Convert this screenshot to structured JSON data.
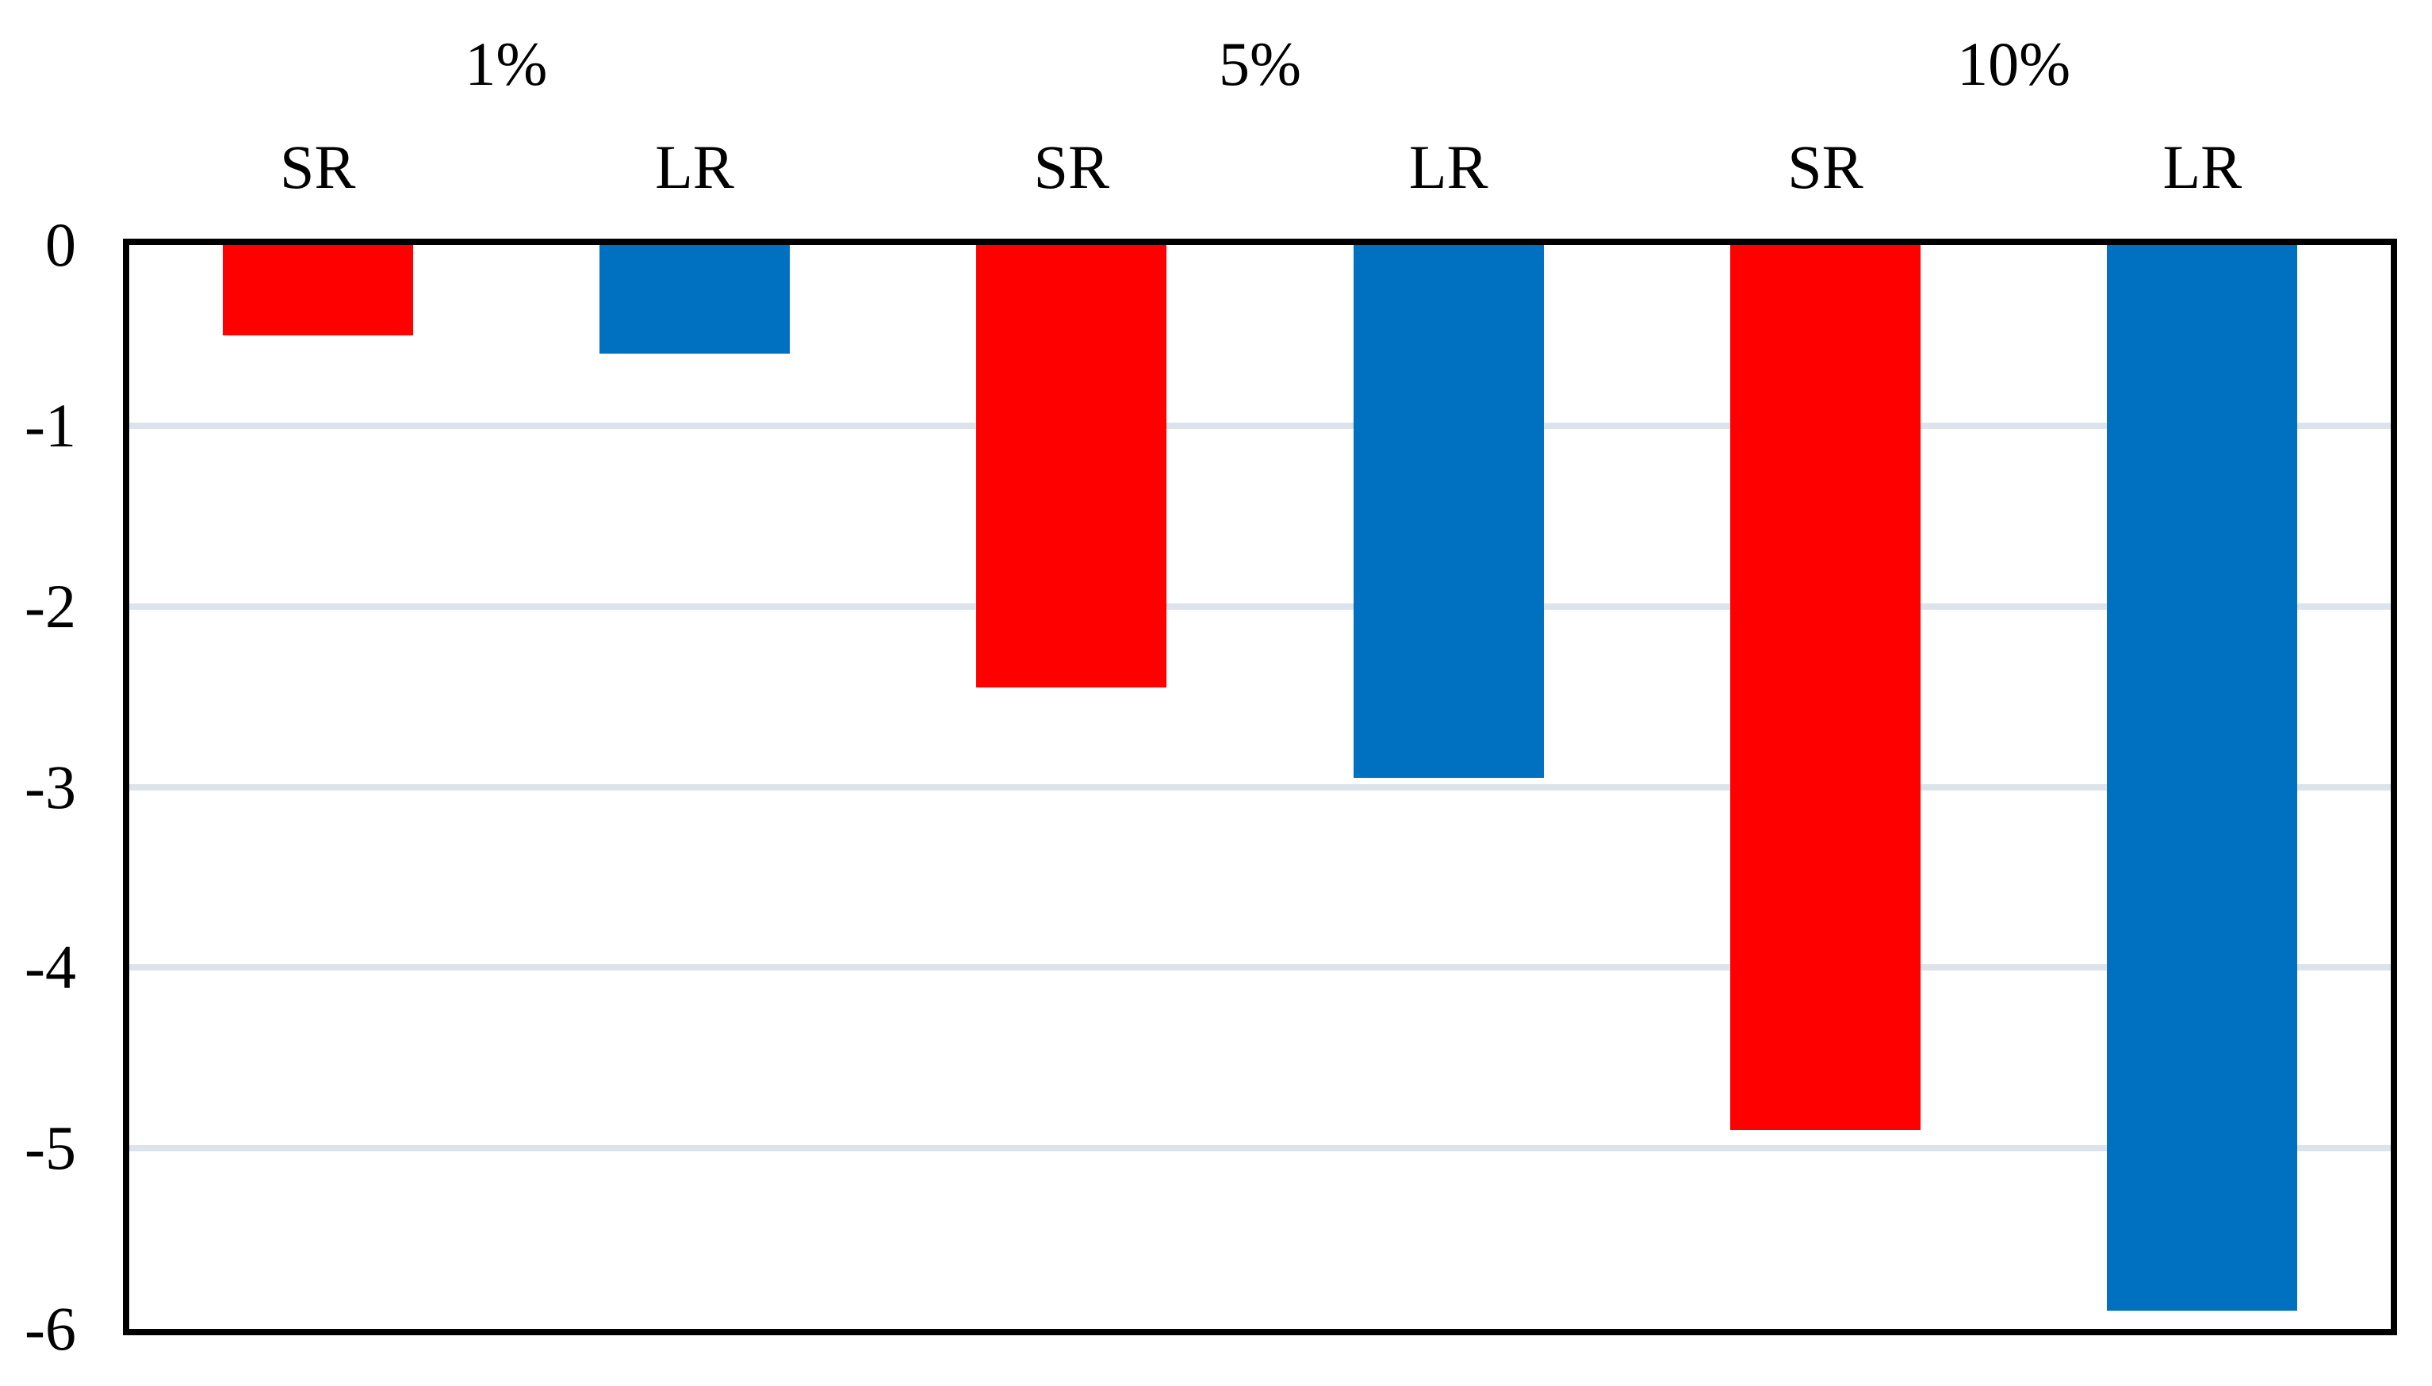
{
  "chart_data": {
    "type": "bar",
    "title": "",
    "xlabel": "",
    "ylabel": "",
    "groups": [
      "1%",
      "5%",
      "10%"
    ],
    "series": [
      {
        "name": "SR",
        "color": "#FF0000",
        "values": [
          -0.5,
          -2.45,
          -4.9
        ]
      },
      {
        "name": "LR",
        "color": "#0070C0",
        "values": [
          -0.6,
          -2.95,
          -5.9
        ]
      }
    ],
    "categories": [
      "1% SR",
      "1% LR",
      "5% SR",
      "5% LR",
      "10% SR",
      "10% LR"
    ],
    "values": [
      -0.5,
      -0.6,
      -2.45,
      -2.95,
      -4.9,
      -5.9
    ],
    "ylim": [
      -6,
      0
    ],
    "yticks": [
      "0",
      "-1",
      "-2",
      "-3",
      "-4",
      "-5",
      "-6"
    ],
    "grid": true,
    "legend_position": "none",
    "colors": {
      "sr_bar": "#FF0000",
      "lr_bar": "#0070C0",
      "gridline": "#DDE3EA",
      "frame": "#000000",
      "background": "#FFFFFF",
      "text": "#000000"
    }
  }
}
